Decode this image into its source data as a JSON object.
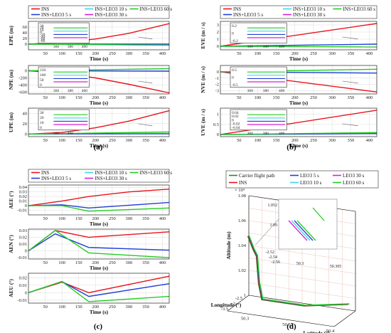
{
  "colors": {
    "INS": "#e8141c",
    "LEO3_5": "#1f3fd6",
    "LEO3_10": "#3fd6e8",
    "LEO3_30": "#d61fd6",
    "LEO3_60": "#22cc22",
    "carrier": "#228b22"
  },
  "captions": [
    "(a)",
    "(b)",
    "(c)",
    "(d)"
  ],
  "legend_abc": [
    "INS",
    "INS+LEO3 5 s",
    "INS+LEO3 10 s",
    "INS+LEO3 30 s",
    "INS+LEO3 60 s"
  ],
  "legend_d": [
    "Carrier flight path",
    "INS",
    "LEO3 5 s",
    "LEO3 10 s",
    "LEO3 30 s",
    "LEO3 60 s"
  ],
  "chart_data": [
    {
      "panel": "a",
      "type": "line",
      "xlabel": "Time (s)",
      "subplots": [
        {
          "ylabel": "EPE (m)",
          "xlim": [
            0,
            420
          ],
          "ylim": [
            -20,
            80
          ],
          "yticks": [
            0,
            20,
            40,
            60
          ],
          "xticks": [
            50,
            100,
            150,
            200,
            250,
            300,
            350,
            400
          ],
          "series": [
            {
              "name": "INS",
              "x": [
                0,
                100,
                200,
                300,
                420
              ],
              "y": [
                0,
                5,
                18,
                38,
                72
              ]
            },
            {
              "name": "INS+LEO3 5 s",
              "x": [
                0,
                420
              ],
              "y": [
                0,
                0
              ]
            },
            {
              "name": "INS+LEO3 60 s",
              "x": [
                0,
                420
              ],
              "y": [
                0,
                -4
              ]
            }
          ],
          "inset": {
            "xticks": [
              360,
              380,
              400
            ],
            "yticks": [
              30,
              20,
              10,
              0,
              -20,
              -40,
              -60,
              -80
            ]
          }
        },
        {
          "ylabel": "NPE (m)",
          "xlim": [
            0,
            420
          ],
          "ylim": [
            -650,
            150
          ],
          "yticks": [
            0,
            -200,
            -400,
            -600
          ],
          "xticks": [
            50,
            100,
            150,
            200,
            250,
            300,
            350,
            400
          ],
          "series": [
            {
              "name": "INS",
              "x": [
                0,
                100,
                200,
                300,
                420
              ],
              "y": [
                0,
                -60,
                -200,
                -380,
                -620
              ]
            },
            {
              "name": "INS+LEO3 5 s",
              "x": [
                0,
                420
              ],
              "y": [
                0,
                -10
              ]
            },
            {
              "name": "INS+LEO3 60 s",
              "x": [
                0,
                420
              ],
              "y": [
                0,
                60
              ]
            }
          ],
          "inset": {
            "xticks": [
              360,
              380,
              400
            ],
            "yticks": [
              150,
              100,
              50,
              0
            ]
          }
        },
        {
          "ylabel": "UPE (m)",
          "xlim": [
            0,
            420
          ],
          "ylim": [
            -5,
            50
          ],
          "yticks": [
            0,
            20,
            40
          ],
          "xticks": [
            50,
            100,
            150,
            200,
            250,
            300,
            350,
            400
          ],
          "series": [
            {
              "name": "INS",
              "x": [
                0,
                100,
                200,
                300,
                420
              ],
              "y": [
                0,
                3,
                12,
                25,
                45
              ]
            },
            {
              "name": "INS+LEO3 5 s",
              "x": [
                0,
                420
              ],
              "y": [
                0,
                0.5
              ]
            },
            {
              "name": "INS+LEO3 60 s",
              "x": [
                0,
                420
              ],
              "y": [
                0,
                4
              ]
            }
          ],
          "inset": {
            "xticks": [
              380,
              400
            ],
            "yticks": [
              30,
              20,
              10,
              0
            ]
          }
        }
      ]
    },
    {
      "panel": "b",
      "type": "line",
      "xlabel": "Time (s)",
      "subplots": [
        {
          "ylabel": "EVE (m / s)",
          "xlim": [
            0,
            420
          ],
          "ylim": [
            -0.5,
            3.5
          ],
          "yticks": [
            0,
            1,
            2,
            3
          ],
          "xticks": [
            50,
            100,
            150,
            200,
            250,
            300,
            350,
            400
          ],
          "series": [
            {
              "name": "INS",
              "x": [
                0,
                420
              ],
              "y": [
                0,
                3.2
              ]
            },
            {
              "name": "INS+LEO3 5 s",
              "x": [
                0,
                420
              ],
              "y": [
                0,
                0.3
              ]
            },
            {
              "name": "INS+LEO3 60 s",
              "x": [
                0,
                420
              ],
              "y": [
                0,
                -0.1
              ]
            }
          ],
          "inset": {
            "xticks": [
              360,
              380,
              400
            ],
            "yticks": [
              0.2,
              0,
              -0.2
            ]
          }
        },
        {
          "ylabel": "NVE (m / s)",
          "xlim": [
            0,
            420
          ],
          "ylim": [
            -3.5,
            1
          ],
          "yticks": [
            0,
            -1,
            -2,
            -3
          ],
          "xticks": [
            50,
            100,
            150,
            200,
            250,
            300,
            350,
            400
          ],
          "series": [
            {
              "name": "INS",
              "x": [
                0,
                420
              ],
              "y": [
                0,
                -3.2
              ]
            },
            {
              "name": "INS+LEO3 5 s",
              "x": [
                0,
                420
              ],
              "y": [
                0,
                -0.2
              ]
            },
            {
              "name": "INS+LEO3 60 s",
              "x": [
                0,
                420
              ],
              "y": [
                0,
                0.4
              ]
            }
          ],
          "inset": {
            "xticks": [
              360,
              380,
              400
            ],
            "yticks": [
              0.5,
              0,
              -0.5
            ]
          }
        },
        {
          "ylabel": "UVE (m / s)",
          "xlim": [
            0,
            420
          ],
          "ylim": [
            -0.1,
            1.3
          ],
          "yticks": [
            0,
            0.5,
            1
          ],
          "xticks": [
            50,
            100,
            150,
            200,
            250,
            300,
            350,
            400
          ],
          "series": [
            {
              "name": "INS",
              "x": [
                0,
                420
              ],
              "y": [
                0,
                1.2
              ]
            },
            {
              "name": "INS+LEO3 5 s",
              "x": [
                0,
                420
              ],
              "y": [
                0,
                0.05
              ]
            },
            {
              "name": "INS+LEO3 60 s",
              "x": [
                0,
                420
              ],
              "y": [
                0,
                0.1
              ]
            }
          ],
          "inset": {
            "xticks": [
              360,
              380,
              400
            ],
            "yticks": [
              0.04,
              0.02,
              0,
              -0.02,
              -0.04
            ]
          }
        }
      ]
    },
    {
      "panel": "c",
      "type": "line",
      "xlabel": "Time (s)",
      "subplots": [
        {
          "ylabel": "AEE (°)",
          "xlim": [
            0,
            420
          ],
          "ylim": [
            -0.02,
            0.045
          ],
          "yticks": [
            -0.01,
            0,
            0.01,
            0.02,
            0.03,
            0.04
          ],
          "xticks": [
            50,
            100,
            150,
            200,
            250,
            300,
            350,
            400
          ],
          "series": [
            {
              "name": "INS",
              "x": [
                0,
                100,
                180,
                300,
                420
              ],
              "y": [
                0,
                0.01,
                0.02,
                0.03,
                0.036
              ]
            },
            {
              "name": "INS+LEO3 5 s",
              "x": [
                0,
                100,
                180,
                420
              ],
              "y": [
                0,
                0.002,
                -0.005,
                0.007
              ]
            },
            {
              "name": "INS+LEO3 60 s",
              "x": [
                0,
                100,
                180,
                420
              ],
              "y": [
                0,
                0.0,
                -0.012,
                -0.005
              ]
            }
          ]
        },
        {
          "ylabel": "AEN (°)",
          "xlim": [
            0,
            420
          ],
          "ylim": [
            -0.012,
            0.032
          ],
          "yticks": [
            -0.01,
            0,
            0.01,
            0.02,
            0.03
          ],
          "xticks": [
            50,
            100,
            150,
            200,
            250,
            300,
            350,
            400
          ],
          "series": [
            {
              "name": "INS",
              "x": [
                0,
                80,
                180,
                420
              ],
              "y": [
                0,
                0.03,
                0.02,
                0.028
              ]
            },
            {
              "name": "INS+LEO3 5 s",
              "x": [
                0,
                80,
                180,
                420
              ],
              "y": [
                0,
                0.025,
                0.005,
                0.001
              ]
            },
            {
              "name": "INS+LEO3 60 s",
              "x": [
                0,
                80,
                180,
                420
              ],
              "y": [
                0,
                0.03,
                -0.003,
                -0.01
              ]
            }
          ]
        },
        {
          "ylabel": "AEU (°)",
          "xlim": [
            0,
            420
          ],
          "ylim": [
            -0.014,
            0.026
          ],
          "yticks": [
            -0.01,
            0,
            0.01,
            0.02
          ],
          "xticks": [
            50,
            100,
            150,
            200,
            250,
            300,
            350,
            400
          ],
          "series": [
            {
              "name": "INS",
              "x": [
                0,
                100,
                180,
                420
              ],
              "y": [
                0,
                0.014,
                0.0,
                0.022
              ]
            },
            {
              "name": "INS+LEO3 5 s",
              "x": [
                0,
                100,
                180,
                420
              ],
              "y": [
                0,
                0.015,
                -0.005,
                0.012
              ]
            },
            {
              "name": "INS+LEO3 60 s",
              "x": [
                0,
                100,
                180,
                420
              ],
              "y": [
                0,
                0.015,
                -0.012,
                -0.005
              ]
            }
          ]
        }
      ]
    },
    {
      "panel": "d",
      "type": "line3d",
      "xlabel": "Longitude (°)",
      "ylabel": "Latitude (°)",
      "zlabel": "Altitude (m)",
      "zscale": "× 10⁴",
      "zticks": [
        "1.08",
        "1.06",
        "1.04",
        "1.02",
        "1"
      ],
      "xticks": [
        "-2.5",
        "-3",
        "-3.5"
      ],
      "yticks": [
        "50.3",
        "50.35",
        "50.4"
      ],
      "inset": {
        "zticks": [
          "1.052",
          "1.05"
        ],
        "xticks": [
          "-2.52",
          "-2.54",
          "-2.56"
        ],
        "yticks": [
          "50.3",
          "50.305"
        ]
      }
    }
  ]
}
